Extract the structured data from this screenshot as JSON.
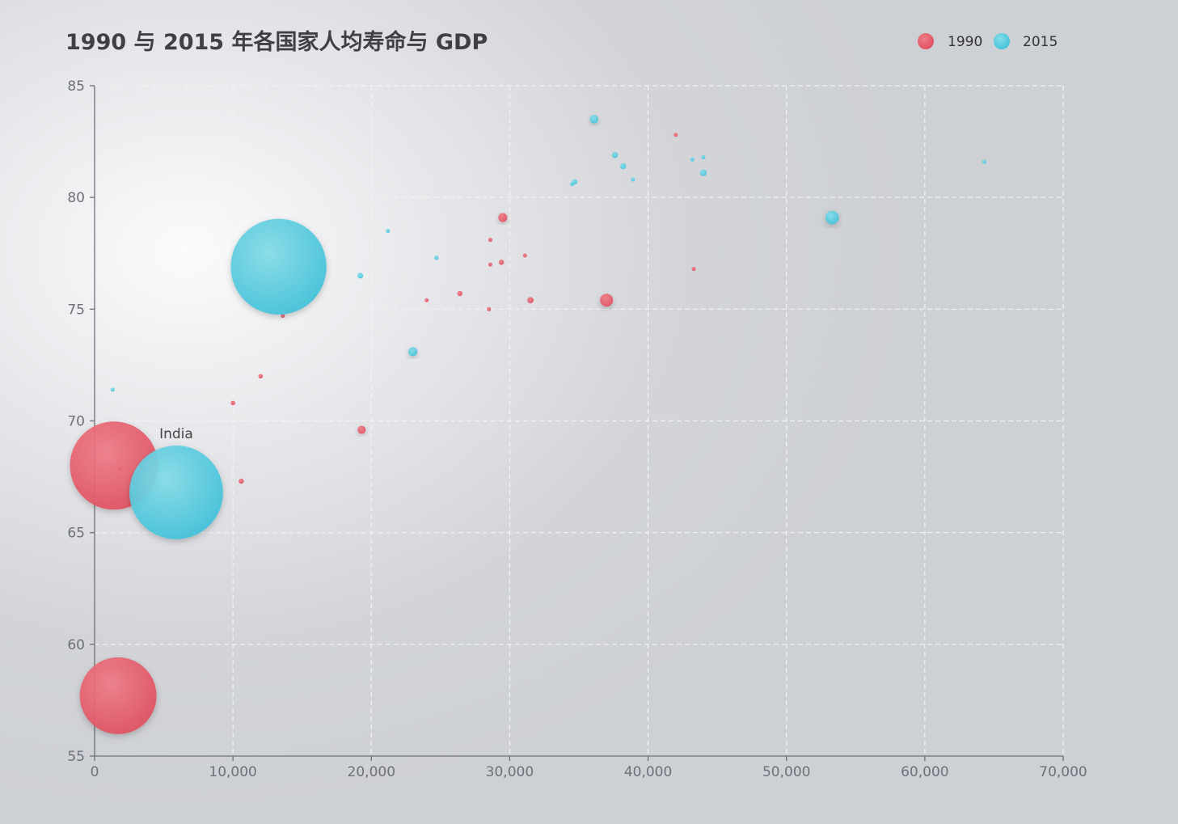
{
  "chart_data": {
    "type": "scatter",
    "subtype": "bubble",
    "title": "1990 与 2015 年各国家人均寿命与 GDP",
    "xlabel": "",
    "ylabel": "",
    "xlim": [
      0,
      70000
    ],
    "ylim": [
      55,
      85
    ],
    "x_ticks": [
      0,
      10000,
      20000,
      30000,
      40000,
      50000,
      60000,
      70000
    ],
    "x_tick_labels": [
      "0",
      "10,000",
      "20,000",
      "30,000",
      "40,000",
      "50,000",
      "60,000",
      "70,000"
    ],
    "y_ticks": [
      55,
      60,
      65,
      70,
      75,
      80,
      85
    ],
    "y_tick_labels": [
      "55",
      "60",
      "65",
      "70",
      "75",
      "80",
      "85"
    ],
    "grid": true,
    "legend_position": "top-right",
    "annotations": [
      {
        "text": "India",
        "series": "2015",
        "point_index": 0
      }
    ],
    "series": [
      {
        "name": "1990",
        "color": "#e25a6a",
        "points": [
          {
            "x": 1400,
            "y": 68.0,
            "size": 1160
          },
          {
            "x": 1700,
            "y": 57.7,
            "size": 880
          },
          {
            "x": 1800,
            "y": 67.9,
            "size": 2
          },
          {
            "x": 10000,
            "y": 70.8,
            "size": 3
          },
          {
            "x": 10600,
            "y": 67.3,
            "size": 4
          },
          {
            "x": 12000,
            "y": 72.0,
            "size": 3
          },
          {
            "x": 13600,
            "y": 74.7,
            "size": 1
          },
          {
            "x": 19300,
            "y": 69.6,
            "size": 10
          },
          {
            "x": 24000,
            "y": 75.4,
            "size": 0.2
          },
          {
            "x": 26400,
            "y": 75.7,
            "size": 4
          },
          {
            "x": 28500,
            "y": 75.0,
            "size": 0.3
          },
          {
            "x": 28600,
            "y": 77.0,
            "size": 1.2
          },
          {
            "x": 28600,
            "y": 78.1,
            "size": 0.05
          },
          {
            "x": 29400,
            "y": 77.1,
            "size": 4
          },
          {
            "x": 29500,
            "y": 79.1,
            "size": 12
          },
          {
            "x": 31100,
            "y": 77.4,
            "size": 2
          },
          {
            "x": 31500,
            "y": 75.4,
            "size": 6
          },
          {
            "x": 37000,
            "y": 75.4,
            "size": 25
          },
          {
            "x": 42000,
            "y": 82.8,
            "size": 0.03
          },
          {
            "x": 43300,
            "y": 76.8,
            "size": 0.3
          }
        ]
      },
      {
        "name": "2015",
        "color": "#4ec9de",
        "points": [
          {
            "x": 5900,
            "y": 66.8,
            "size": 1310
          },
          {
            "x": 13300,
            "y": 76.9,
            "size": 1370
          },
          {
            "x": 1300,
            "y": 71.4,
            "size": 1.3
          },
          {
            "x": 19200,
            "y": 76.5,
            "size": 5
          },
          {
            "x": 21200,
            "y": 78.5,
            "size": 0.6
          },
          {
            "x": 23000,
            "y": 73.1,
            "size": 12
          },
          {
            "x": 24700,
            "y": 77.3,
            "size": 2.8
          },
          {
            "x": 34500,
            "y": 80.6,
            "size": 0.2
          },
          {
            "x": 34700,
            "y": 80.7,
            "size": 4.2
          },
          {
            "x": 36100,
            "y": 83.5,
            "size": 10.4
          },
          {
            "x": 37600,
            "y": 81.9,
            "size": 5.5
          },
          {
            "x": 38200,
            "y": 81.4,
            "size": 5.3
          },
          {
            "x": 38900,
            "y": 80.8,
            "size": 0.4
          },
          {
            "x": 43200,
            "y": 81.7,
            "size": 2.5
          },
          {
            "x": 44000,
            "y": 81.8,
            "size": 1.6
          },
          {
            "x": 44000,
            "y": 81.1,
            "size": 6.6
          },
          {
            "x": 53300,
            "y": 79.1,
            "size": 27
          },
          {
            "x": 64300,
            "y": 81.6,
            "size": 0.3
          }
        ]
      }
    ]
  }
}
